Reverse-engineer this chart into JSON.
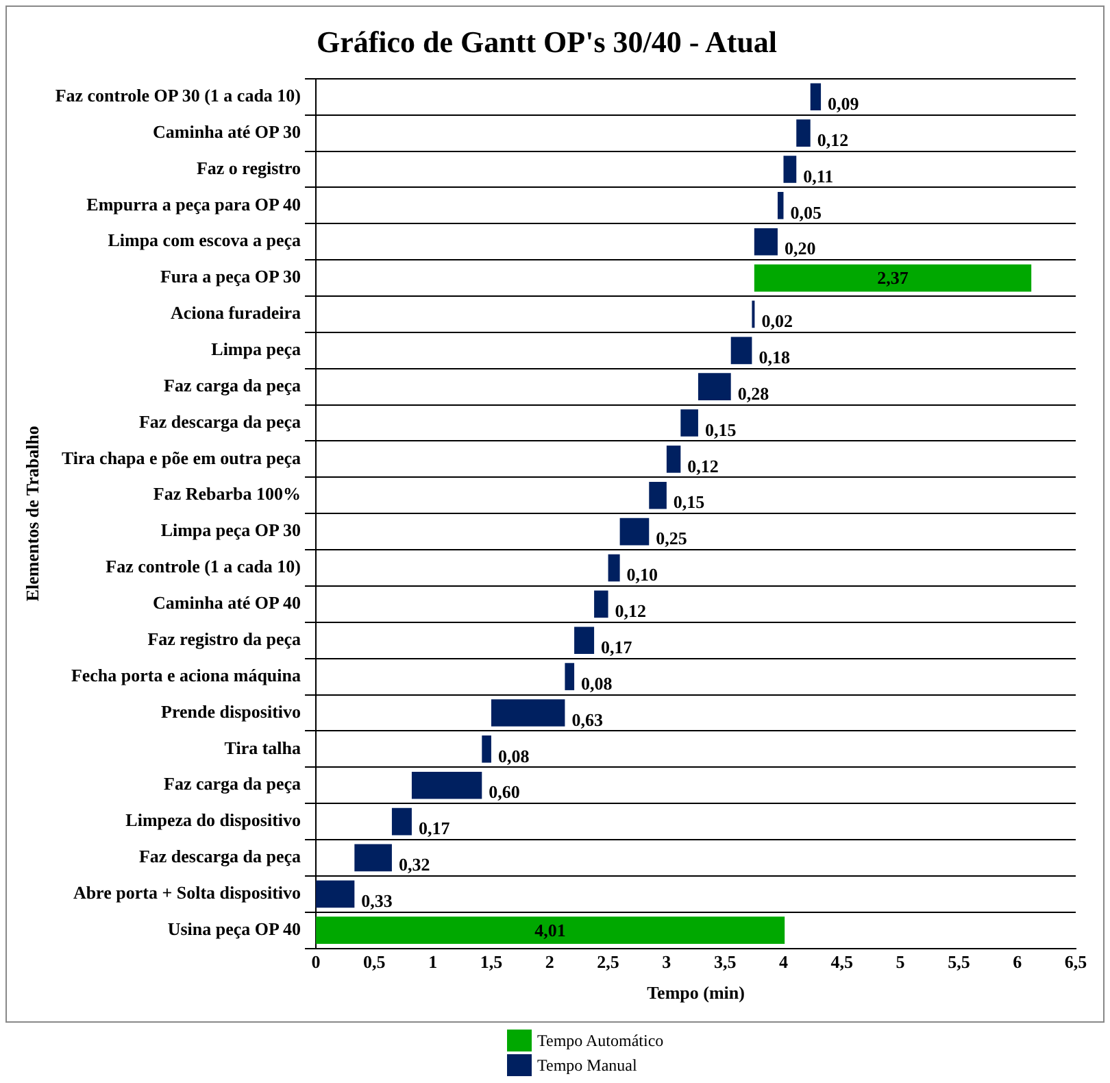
{
  "chart_data": {
    "type": "bar",
    "orientation": "horizontal",
    "title": "Gráfico de Gantt OP's 30/40 - Atual",
    "xlabel": "Tempo (min)",
    "ylabel": "Elementos de Trabalho",
    "categories": [
      "Faz controle OP 30 (1 a cada 10)",
      "Caminha até OP 30",
      "Faz o registro",
      "Empurra a peça para OP 40",
      "Limpa com escova a peça",
      "Fura a peça OP 30",
      "Aciona furadeira",
      "Limpa peça",
      "Faz carga da peça",
      "Faz descarga da peça",
      "Tira chapa e põe em outra peça",
      "Faz Rebarba 100%",
      "Limpa peça OP 30",
      "Faz controle (1 a cada 10)",
      "Caminha até OP 40",
      "Faz registro da peça",
      "Fecha porta e aciona máquina",
      "Prende dispositivo",
      "Tira talha",
      "Faz carga da peça",
      "Limpeza do dispositivo",
      "Faz descarga da peça",
      "Abre porta + Solta dispositivo",
      "Usina peça OP 40"
    ],
    "series": [
      {
        "name": "Tempo Automático",
        "color": "#00a800",
        "base": [
          null,
          null,
          null,
          null,
          null,
          3.75,
          null,
          null,
          null,
          null,
          null,
          null,
          null,
          null,
          null,
          null,
          null,
          null,
          null,
          null,
          null,
          null,
          null,
          0
        ],
        "values": [
          null,
          null,
          null,
          null,
          null,
          2.37,
          null,
          null,
          null,
          null,
          null,
          null,
          null,
          null,
          null,
          null,
          null,
          null,
          null,
          null,
          null,
          null,
          null,
          4.01
        ],
        "value_labels": [
          null,
          null,
          null,
          null,
          null,
          "2,37",
          null,
          null,
          null,
          null,
          null,
          null,
          null,
          null,
          null,
          null,
          null,
          null,
          null,
          null,
          null,
          null,
          null,
          "4,01"
        ]
      },
      {
        "name": "Tempo Manual",
        "color": "#002060",
        "base": [
          4.23,
          4.11,
          4.0,
          3.95,
          3.75,
          null,
          3.73,
          3.55,
          3.27,
          3.12,
          3.0,
          2.85,
          2.6,
          2.5,
          2.38,
          2.21,
          2.13,
          1.5,
          1.42,
          0.82,
          0.65,
          0.33,
          0,
          null
        ],
        "values": [
          0.09,
          0.12,
          0.11,
          0.05,
          0.2,
          null,
          0.02,
          0.18,
          0.28,
          0.15,
          0.12,
          0.15,
          0.25,
          0.1,
          0.12,
          0.17,
          0.08,
          0.63,
          0.08,
          0.6,
          0.17,
          0.32,
          0.33,
          null
        ],
        "value_labels": [
          "0,09",
          "0,12",
          "0,11",
          "0,05",
          "0,20",
          null,
          "0,02",
          "0,18",
          "0,28",
          "0,15",
          "0,12",
          "0,15",
          "0,25",
          "0,10",
          "0,12",
          "0,17",
          "0,08",
          "0,63",
          "0,08",
          "0,60",
          "0,17",
          "0,32",
          "0,33",
          null
        ]
      }
    ],
    "xlim": [
      0,
      6.5
    ],
    "xticks": [
      0,
      {
        "value": 0.5,
        "label": "0,5"
      },
      1,
      {
        "value": 1.5,
        "label": "1,5"
      },
      2,
      {
        "value": 2.5,
        "label": "2,5"
      },
      3,
      {
        "value": 3.5,
        "label": "3,5"
      },
      4,
      {
        "value": 4.5,
        "label": "4,5"
      },
      5,
      {
        "value": 5.5,
        "label": "5,5"
      },
      6,
      {
        "value": 6.5,
        "label": "6,5"
      }
    ],
    "grid": "y",
    "legend": "bottom"
  }
}
